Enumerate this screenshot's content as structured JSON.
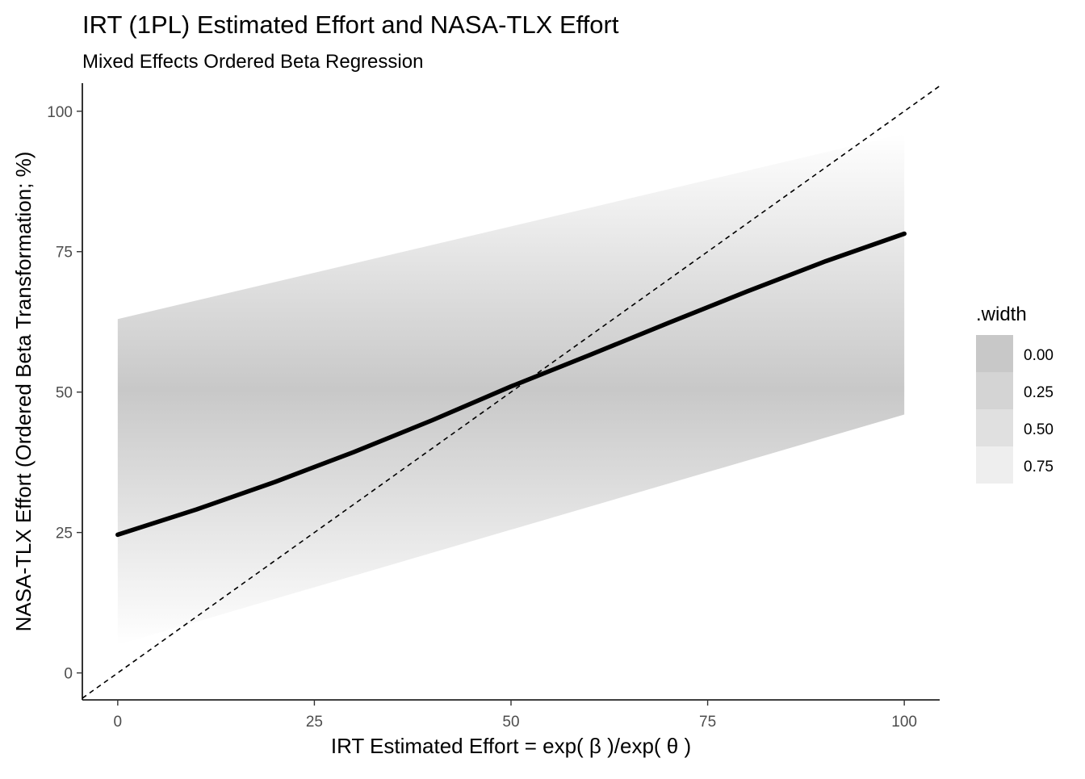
{
  "colors": {
    "line": "#000000",
    "ribbon": "#c8c8c8",
    "legend_keys": [
      "#c8c8c8",
      "#d4d4d4",
      "#e0e0e0",
      "#eeeeee"
    ],
    "axis": "#000000",
    "tick_label": "#4d4d4d"
  },
  "chart_data": {
    "type": "line",
    "title": "IRT (1PL) Estimated Effort and NASA-TLX Effort",
    "subtitle": "Mixed Effects Ordered Beta Regression",
    "xlabel": "IRT Estimated Effort = exp( β )/exp( θ )",
    "ylabel": "NASA-TLX Effort (Ordered Beta Transformation; %)",
    "xlim": [
      -4.5,
      104.5
    ],
    "ylim": [
      -4.8,
      105
    ],
    "x_ticks": [
      0,
      25,
      50,
      75,
      100
    ],
    "x_tick_labels": [
      "0",
      "25",
      "50",
      "75",
      "100"
    ],
    "y_ticks": [
      0,
      25,
      50,
      75,
      100
    ],
    "y_tick_labels": [
      "0",
      "25",
      "50",
      "75",
      "100"
    ],
    "grid": false,
    "legend": {
      "title": ".width",
      "position": "right",
      "items": [
        "0.00",
        "0.25",
        "0.50",
        "0.75"
      ]
    },
    "series": [
      {
        "x": [
          0,
          10,
          20,
          30,
          40,
          50,
          60,
          70,
          80,
          90,
          100
        ],
        "y": [
          24.6,
          29.1,
          34.0,
          39.3,
          45.0,
          51.0,
          56.6,
          62.3,
          67.9,
          73.3,
          78.2
        ]
      }
    ],
    "ribbon": {
      "x": [
        0,
        100
      ],
      "lower": [
        5,
        46
      ],
      "upper": [
        63,
        96
      ]
    },
    "reference_line": {
      "style": "dashed",
      "slope": 1,
      "intercept": 0
    }
  }
}
